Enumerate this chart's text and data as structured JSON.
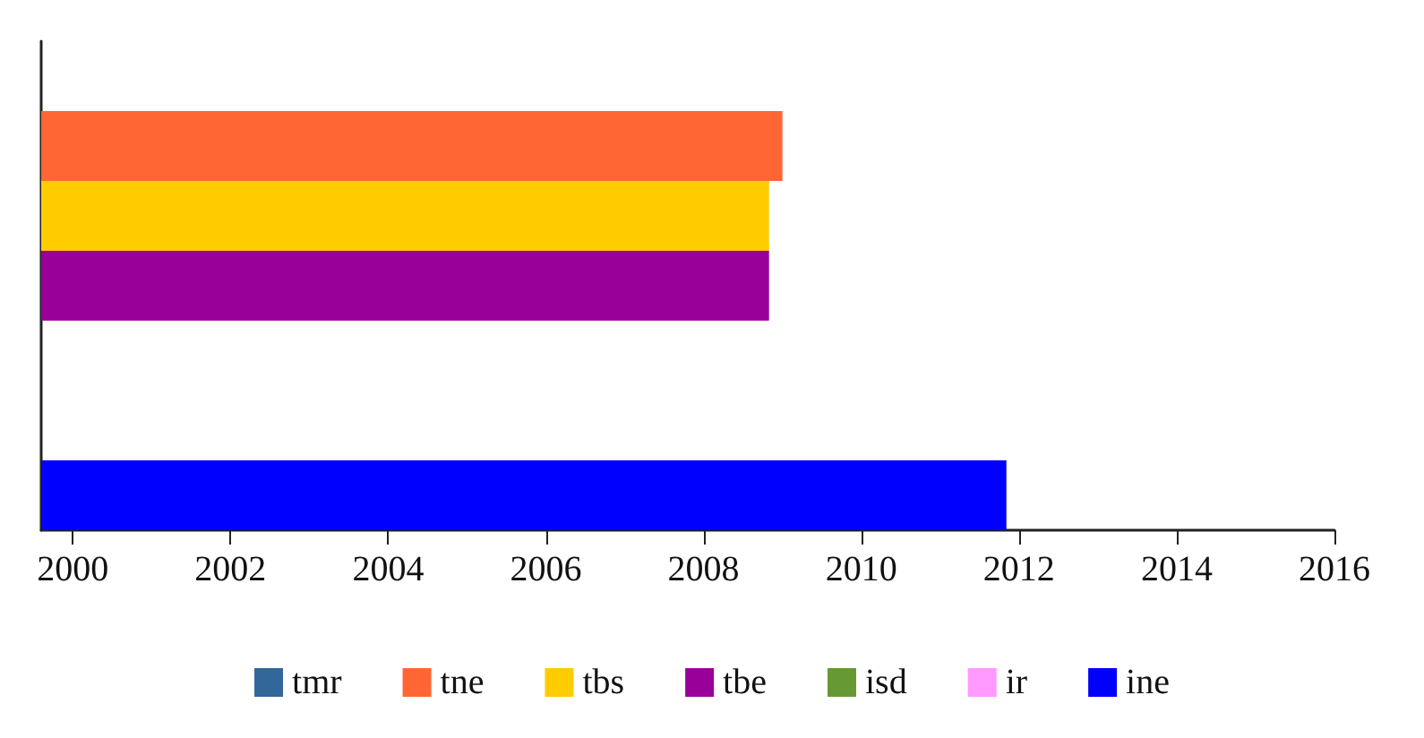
{
  "chart_data": {
    "type": "bar",
    "orientation": "horizontal",
    "categories": [
      null
    ],
    "series": [
      {
        "name": "tmr",
        "color": "#336699",
        "values": [
          null
        ]
      },
      {
        "name": "tne",
        "color": "#ff6633",
        "values": [
          2009.0
        ]
      },
      {
        "name": "tbs",
        "color": "#ffcc00",
        "values": [
          2008.83
        ]
      },
      {
        "name": "tbe",
        "color": "#990099",
        "values": [
          2008.83
        ]
      },
      {
        "name": "isd",
        "color": "#669933",
        "values": [
          null
        ]
      },
      {
        "name": "ir",
        "color": "#ff99ff",
        "values": [
          null
        ]
      },
      {
        "name": "ine",
        "color": "#0000ff",
        "values": [
          2011.84
        ]
      }
    ],
    "xlim": [
      1999.6,
      2016
    ],
    "xticks": [
      2000,
      2002,
      2004,
      2006,
      2008,
      2010,
      2012,
      2014,
      2016
    ],
    "grid": false,
    "legend": "bottom"
  }
}
